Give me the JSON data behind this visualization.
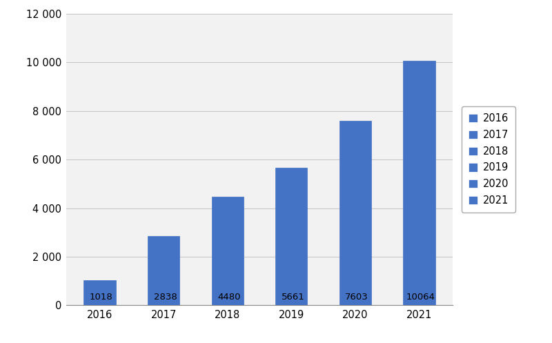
{
  "categories": [
    "2016",
    "2017",
    "2018",
    "2019",
    "2020",
    "2021"
  ],
  "values": [
    1018,
    2838,
    4480,
    5661,
    7603,
    10064
  ],
  "bar_color": "#4472C4",
  "bar_edge_color": "#4472C4",
  "value_labels": [
    "1018",
    "2838",
    "4480",
    "5661",
    "7603",
    "10064"
  ],
  "legend_labels": [
    "2016",
    "2017",
    "2018",
    "2019",
    "2020",
    "2021"
  ],
  "ylim": [
    0,
    12000
  ],
  "yticks": [
    0,
    2000,
    4000,
    6000,
    8000,
    10000,
    12000
  ],
  "ytick_labels": [
    "0",
    "2 000",
    "4 000",
    "6 000",
    "8 000",
    "10 000",
    "12 000"
  ],
  "grid_color": "#C8C8C8",
  "plot_bg_color": "#F2F2F2",
  "fig_bg_color": "#FFFFFF",
  "tick_fontsize": 10.5,
  "legend_fontsize": 10.5,
  "value_fontsize": 9.5,
  "bar_width": 0.5
}
